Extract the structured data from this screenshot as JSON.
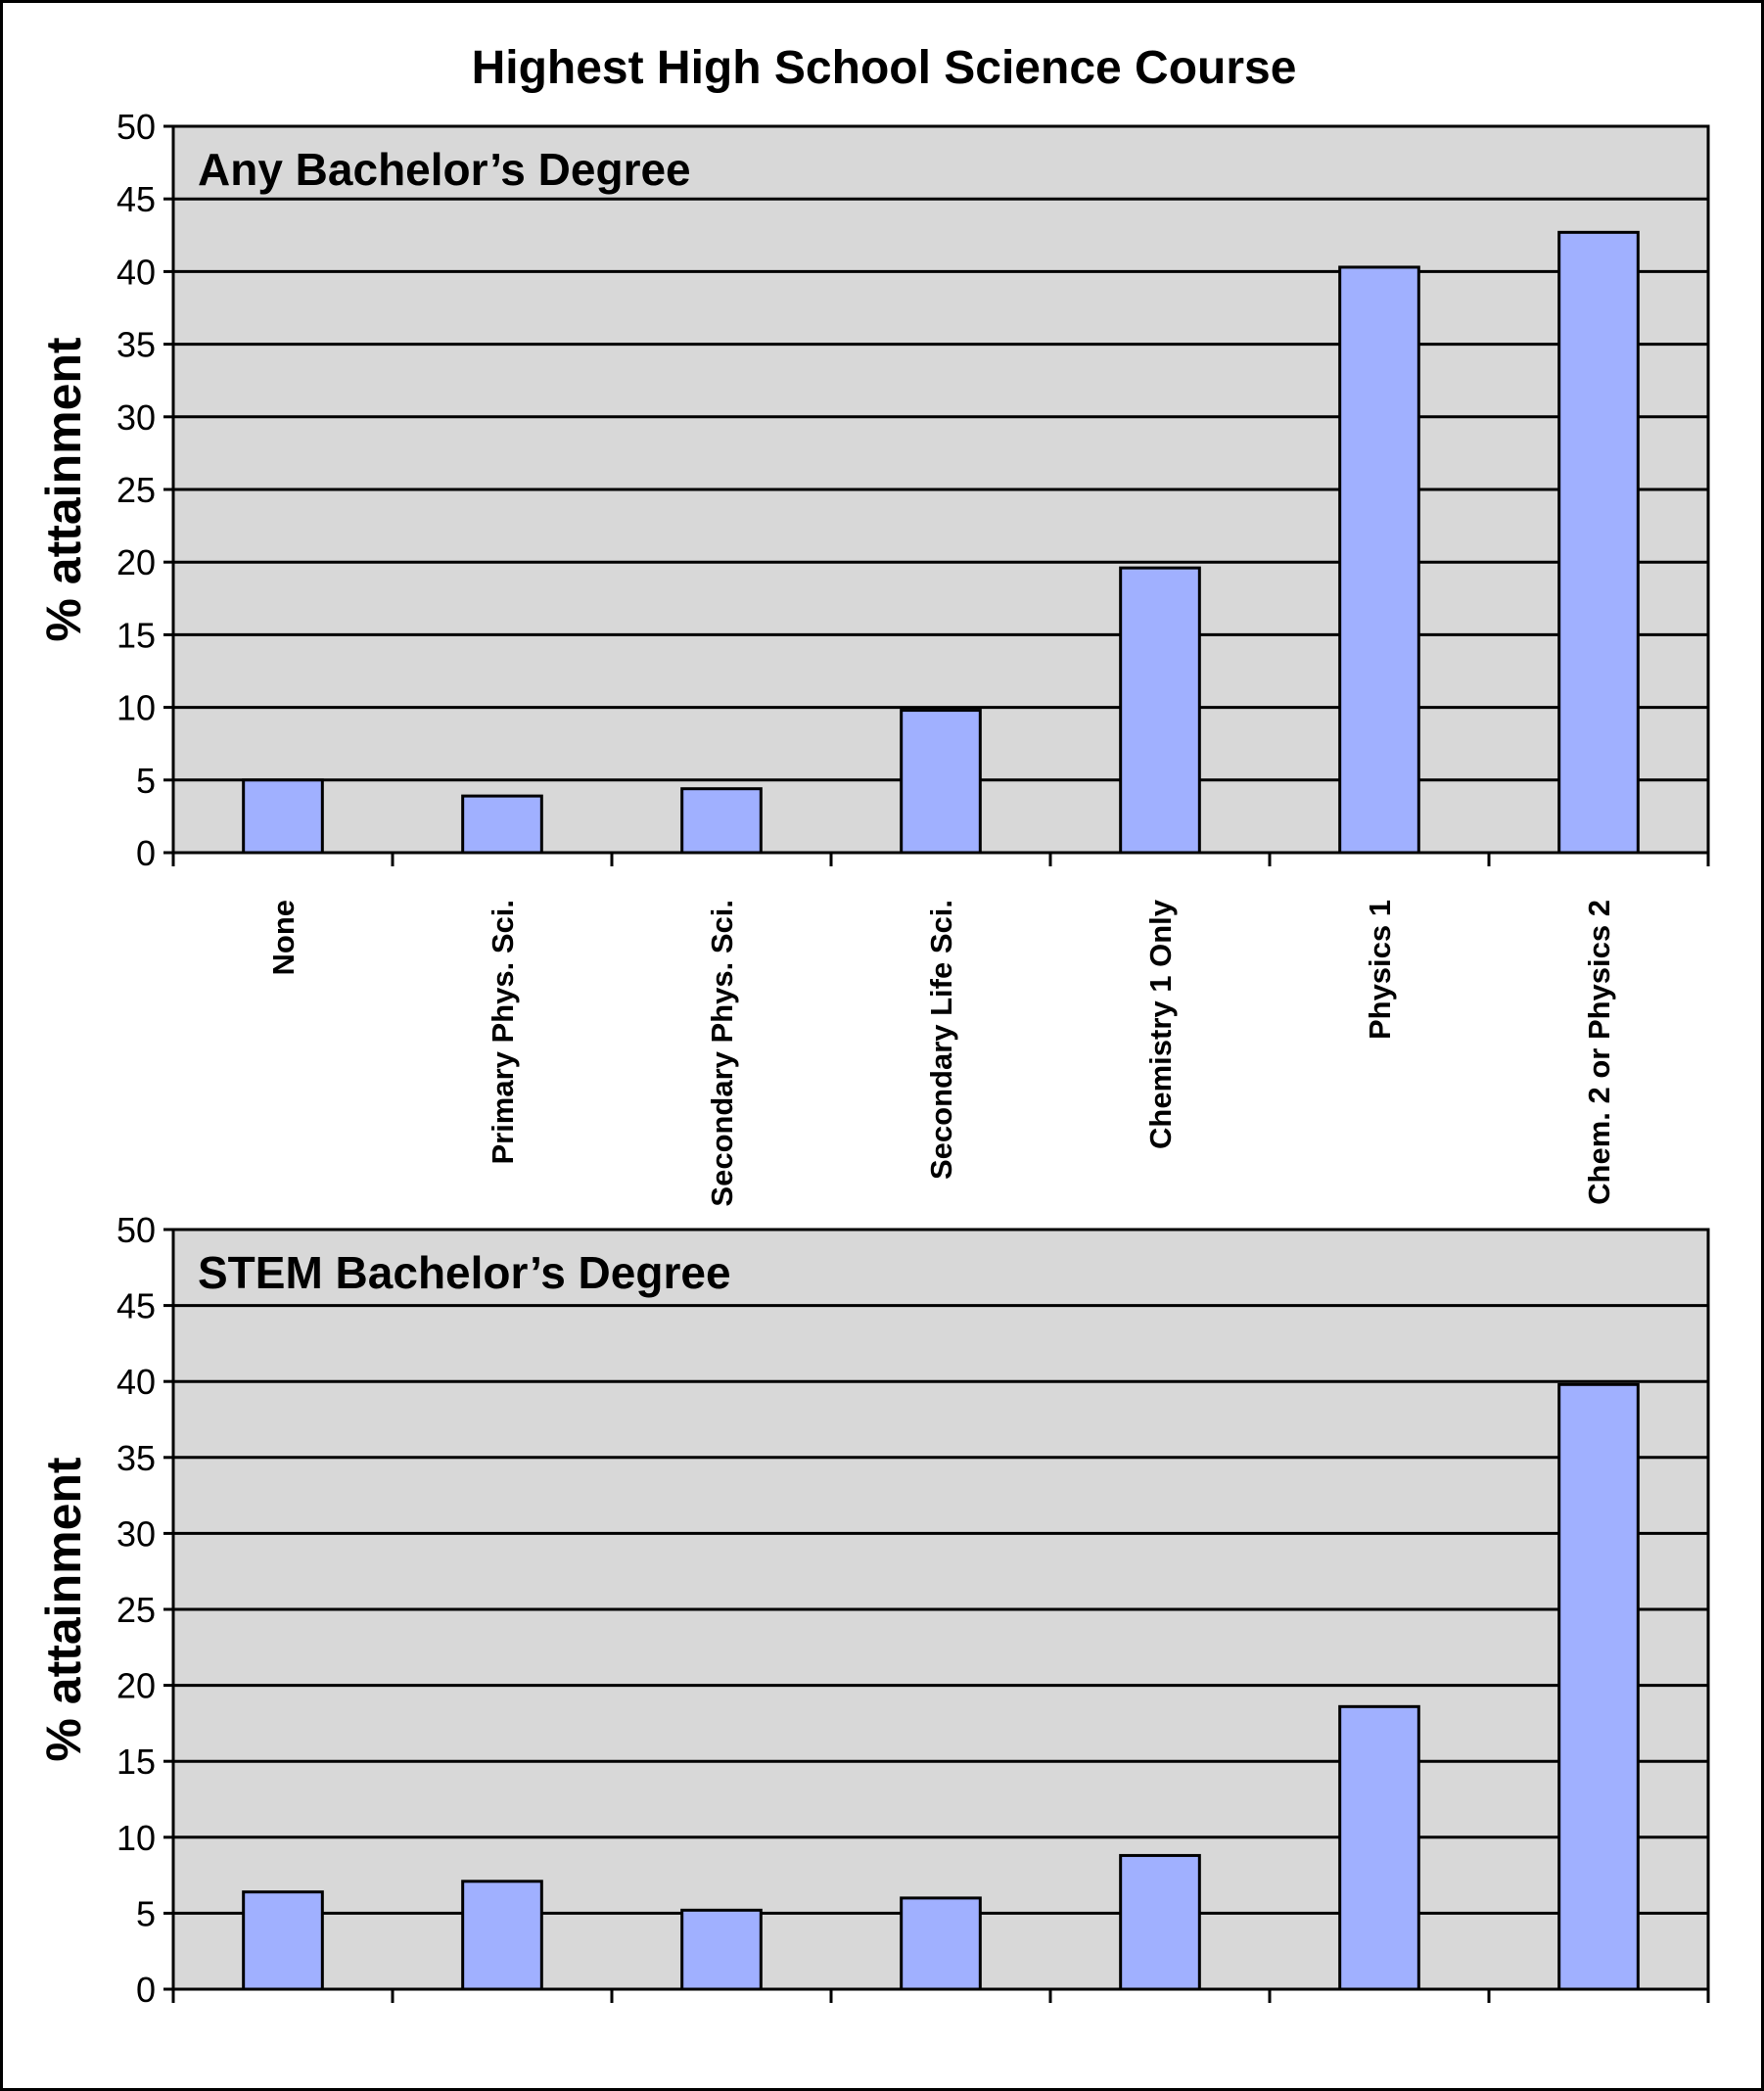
{
  "title": "Highest High School Science Course",
  "colors": {
    "bar": "#a0b0ff",
    "plot_bg": "#d8d8d8",
    "axis": "#000000"
  },
  "chart_data": [
    {
      "type": "bar",
      "panel_label": "Any Bachelor’s Degree",
      "ylabel": "% attainment",
      "ylim": [
        0,
        50
      ],
      "yticks": [
        0,
        5,
        10,
        15,
        20,
        25,
        30,
        35,
        40,
        45,
        50
      ],
      "grid": true,
      "categories": [
        "None",
        "Primary Phys. Sci.",
        "Secondary Phys. Sci.",
        "Secondary Life Sci.",
        "Chemistry 1 Only",
        "Physics 1",
        "Chem. 2 or Physics 2"
      ],
      "values": [
        5.0,
        3.9,
        4.4,
        9.8,
        19.6,
        40.3,
        42.7
      ]
    },
    {
      "type": "bar",
      "panel_label": "STEM Bachelor’s Degree",
      "ylabel": "% attainment",
      "ylim": [
        0,
        50
      ],
      "yticks": [
        0,
        5,
        10,
        15,
        20,
        25,
        30,
        35,
        40,
        45,
        50
      ],
      "grid": true,
      "categories": [
        "None",
        "Primary Phys. Sci.",
        "Secondary Phys. Sci.",
        "Secondary Life Sci.",
        "Chemistry 1 Only",
        "Physics 1",
        "Chem. 2 or Physics 2"
      ],
      "values": [
        6.4,
        7.1,
        5.2,
        6.0,
        8.8,
        18.6,
        39.8
      ]
    }
  ]
}
